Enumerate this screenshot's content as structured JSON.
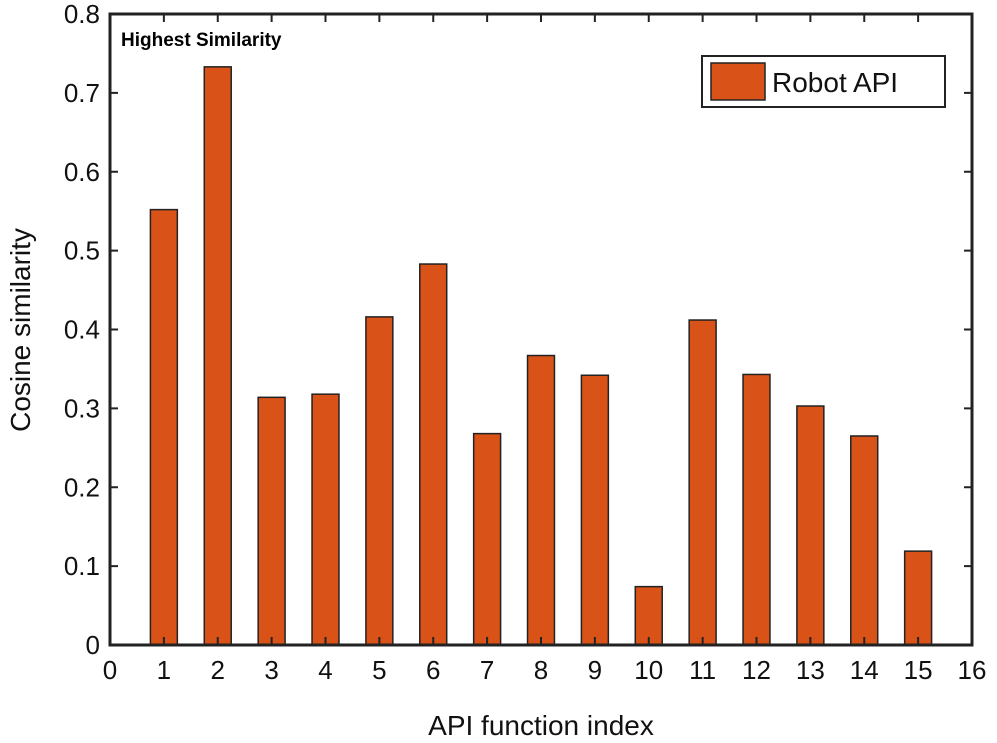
{
  "chart_data": {
    "type": "bar",
    "title": "",
    "annotation": "Highest Similarity",
    "xlabel": "API function index",
    "ylabel": "Cosine similarity",
    "x": [
      1,
      2,
      3,
      4,
      5,
      6,
      7,
      8,
      9,
      10,
      11,
      12,
      13,
      14,
      15
    ],
    "series": [
      {
        "name": "Robot API",
        "color": "#D95319",
        "values": [
          0.552,
          0.733,
          0.314,
          0.318,
          0.416,
          0.483,
          0.268,
          0.367,
          0.342,
          0.074,
          0.412,
          0.343,
          0.303,
          0.265,
          0.119
        ]
      }
    ],
    "xlim": [
      0,
      16
    ],
    "ylim": [
      0,
      0.8
    ],
    "xticks": [
      "0",
      "1",
      "2",
      "3",
      "4",
      "5",
      "6",
      "7",
      "8",
      "9",
      "10",
      "11",
      "12",
      "13",
      "14",
      "15",
      "16"
    ],
    "yticks": [
      "0",
      "0.1",
      "0.2",
      "0.3",
      "0.4",
      "0.5",
      "0.6",
      "0.7",
      "0.8"
    ],
    "grid": false,
    "legend_position": "top-right"
  }
}
